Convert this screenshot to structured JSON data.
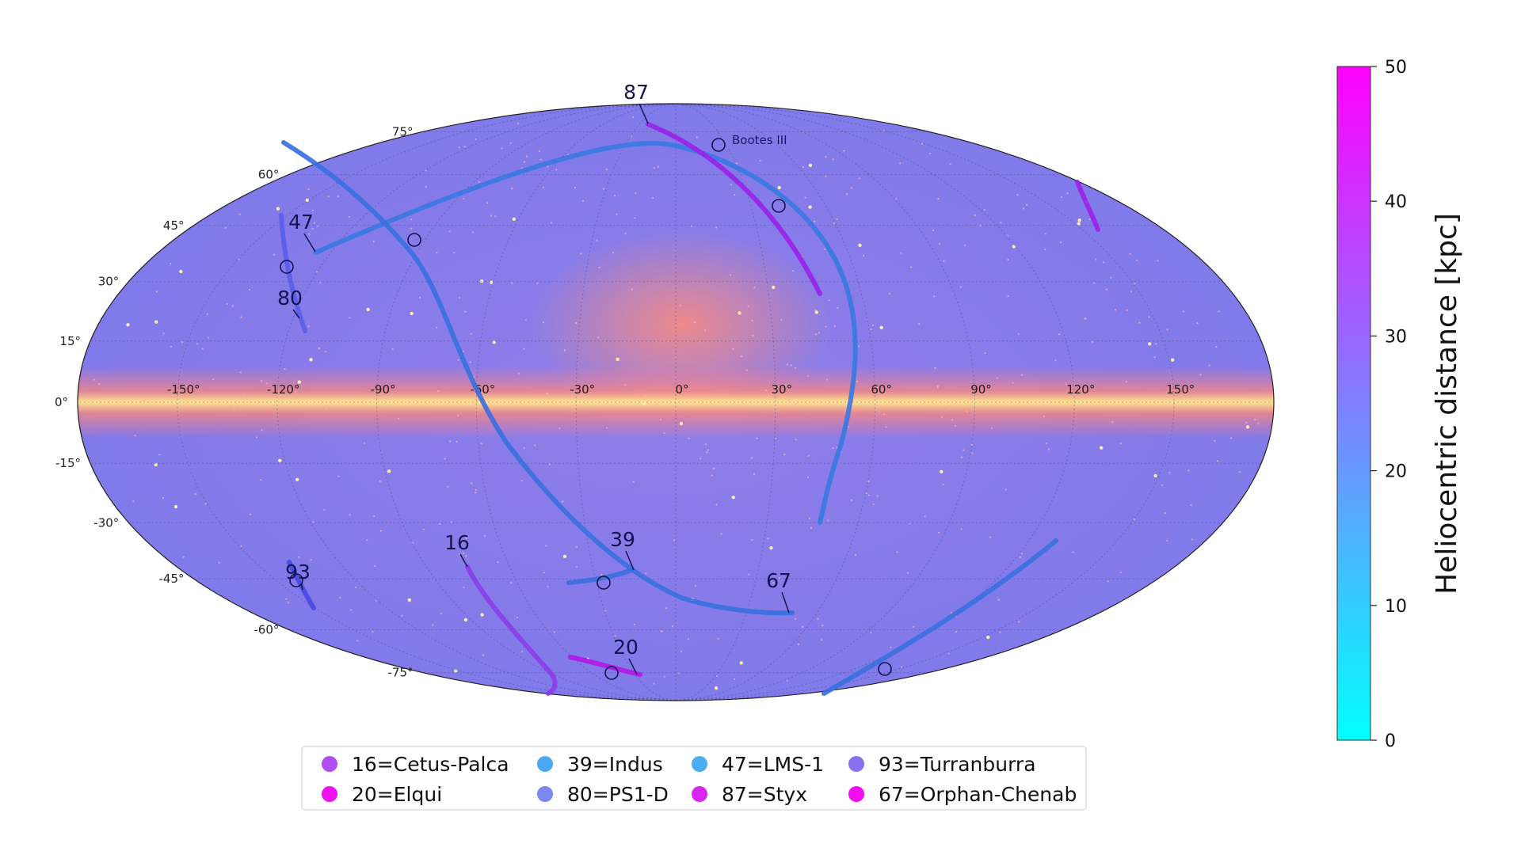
{
  "map": {
    "projection": "mollweide",
    "background": "all-sky image (galactic coordinates)",
    "grid": true,
    "lon_ticks": [
      "-150°",
      "-120°",
      "-90°",
      "-60°",
      "-30°",
      "0°",
      "30°",
      "60°",
      "90°",
      "120°",
      "150°"
    ],
    "lat_ticks": [
      "75°",
      "60°",
      "45°",
      "30°",
      "15°",
      "0°",
      "-15°",
      "-30°",
      "-45°",
      "-60°",
      "-75°"
    ]
  },
  "colorbar": {
    "title": "Heliocentric distance [kpc]",
    "range": [
      0,
      50
    ],
    "ticks": [
      "0",
      "10",
      "20",
      "30",
      "40",
      "50"
    ],
    "colors": {
      "min": "#00ffff",
      "max": "#ff00ff"
    }
  },
  "streams": [
    {
      "id": "16",
      "label": "16",
      "name": "Cetus-Palca",
      "color": "#8a3ee8"
    },
    {
      "id": "20",
      "label": "20",
      "name": "Elqui",
      "color": "#b318e6"
    },
    {
      "id": "39",
      "label": "39",
      "name": "Indus",
      "color": "#3c6ee0"
    },
    {
      "id": "47",
      "label": "47",
      "name": "LMS-1",
      "color": "#3a78e0"
    },
    {
      "id": "80",
      "label": "80",
      "name": "PS1-D",
      "color": "#5a5ee8"
    },
    {
      "id": "87",
      "label": "87",
      "name": "Styx",
      "color": "#9a22e8"
    },
    {
      "id": "67",
      "label": "67",
      "name": "Orphan-Chenab",
      "color": "#3a70e0"
    },
    {
      "id": "93",
      "label": "93",
      "name": "Turranburra",
      "color": "#4a4ae0"
    }
  ],
  "annotations": [
    {
      "label": "Bootes III"
    }
  ],
  "legend": {
    "items": [
      {
        "text": "16=Cetus-Palca",
        "color": "#b04cf0"
      },
      {
        "text": "39=Indus",
        "color": "#4ca8f0"
      },
      {
        "text": "47=LMS-1",
        "color": "#4aaef2"
      },
      {
        "text": "93=Turranburra",
        "color": "#8a70f0"
      },
      {
        "text": "20=Elqui",
        "color": "#f010f0"
      },
      {
        "text": "80=PS1-D",
        "color": "#7a88f0"
      },
      {
        "text": "87=Styx",
        "color": "#d826f0"
      },
      {
        "text": "67=Orphan-Chenab",
        "color": "#f20ef2"
      }
    ]
  }
}
